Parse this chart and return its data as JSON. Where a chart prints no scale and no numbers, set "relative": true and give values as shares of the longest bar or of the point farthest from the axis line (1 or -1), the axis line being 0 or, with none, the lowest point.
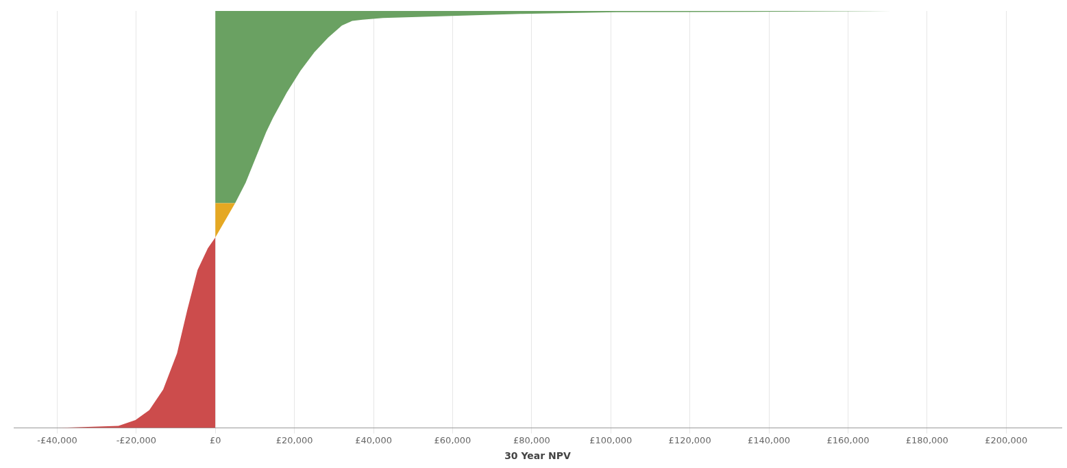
{
  "chart_data": {
    "type": "area",
    "xlabel": "30 Year NPV",
    "relative": true,
    "grid": "x",
    "legend": false,
    "xlim": [
      -51000,
      214000
    ],
    "xticks": [
      {
        "value": -40000,
        "label": "-£40,000"
      },
      {
        "value": -20000,
        "label": "-£20,000"
      },
      {
        "value": 0,
        "label": "£0"
      },
      {
        "value": 20000,
        "label": "£20,000"
      },
      {
        "value": 40000,
        "label": "£40,000"
      },
      {
        "value": 60000,
        "label": "£60,000"
      },
      {
        "value": 80000,
        "label": "£80,000"
      },
      {
        "value": 100000,
        "label": "£100,000"
      },
      {
        "value": 120000,
        "label": "£120,000"
      },
      {
        "value": 140000,
        "label": "£140,000"
      },
      {
        "value": 160000,
        "label": "£160,000"
      },
      {
        "value": 180000,
        "label": "£180,000"
      },
      {
        "value": 200000,
        "label": "£200,000"
      }
    ],
    "series": [
      {
        "color": "#cc4c4c",
        "x": [
          -40000,
          -24500,
          -20200,
          -16700,
          -13200,
          -9700,
          -7100,
          -4500,
          -1900,
          0
        ],
        "values": [
          0,
          0.005,
          0.019,
          0.043,
          0.092,
          0.179,
          0.283,
          0.379,
          0.431,
          0.457
        ]
      },
      {
        "color": "#e5a823",
        "x": [
          0,
          0,
          5000
        ],
        "values": [
          0.539,
          0.457,
          0.539
        ]
      },
      {
        "color": "#6aa162",
        "x": [
          0,
          0,
          5000,
          7650,
          10260,
          12870,
          14600,
          18100,
          21560,
          25040,
          28500,
          32000,
          34600,
          37200,
          42400,
          59800,
          77200,
          101500,
          136300,
          171000
        ],
        "values": [
          1,
          0.539,
          0.539,
          0.588,
          0.649,
          0.71,
          0.744,
          0.805,
          0.857,
          0.901,
          0.936,
          0.965,
          0.976,
          0.979,
          0.983,
          0.988,
          0.993,
          0.997,
          0.998,
          1
        ]
      }
    ]
  }
}
